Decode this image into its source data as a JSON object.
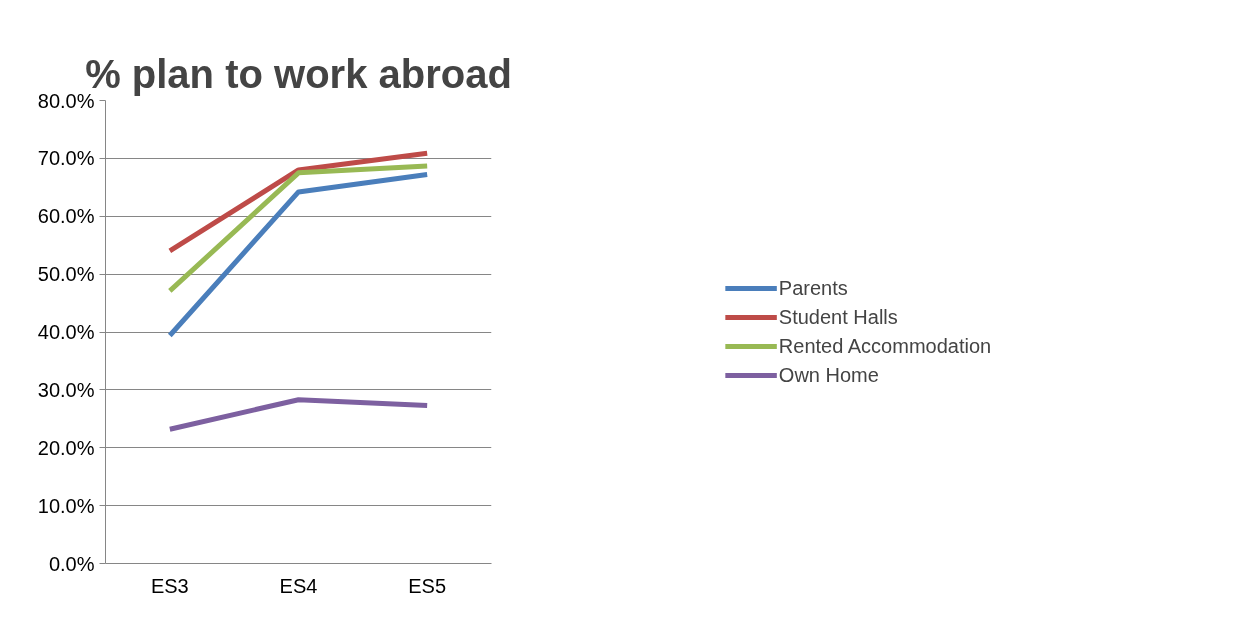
{
  "chart_data": {
    "type": "line",
    "title": "% plan to work abroad",
    "categories": [
      "ES3",
      "ES4",
      "ES5"
    ],
    "series": [
      {
        "name": "Parents",
        "color": "#4a7ebb",
        "values": [
          39.4,
          64.2,
          67.2
        ]
      },
      {
        "name": "Student Halls",
        "color": "#be4b48",
        "values": [
          54.0,
          68.0,
          70.9
        ]
      },
      {
        "name": "Rented Accommodation",
        "color": "#98b954",
        "values": [
          47.1,
          67.5,
          68.7
        ]
      },
      {
        "name": "Own Home",
        "color": "#7d60a0",
        "values": [
          23.2,
          28.3,
          27.3
        ]
      }
    ],
    "ylim": [
      0,
      80
    ],
    "yticks": [
      {
        "value": 0,
        "label": "0.0%"
      },
      {
        "value": 10,
        "label": "10.0%"
      },
      {
        "value": 20,
        "label": "20.0%"
      },
      {
        "value": 30,
        "label": "30.0%"
      },
      {
        "value": 40,
        "label": "40.0%"
      },
      {
        "value": 50,
        "label": "50.0%"
      },
      {
        "value": 60,
        "label": "60.0%"
      },
      {
        "value": 70,
        "label": "70.0%"
      },
      {
        "value": 80,
        "label": "80.0%"
      }
    ],
    "grid": "y",
    "legend": "right",
    "marker": "none",
    "line_style": "solid"
  }
}
